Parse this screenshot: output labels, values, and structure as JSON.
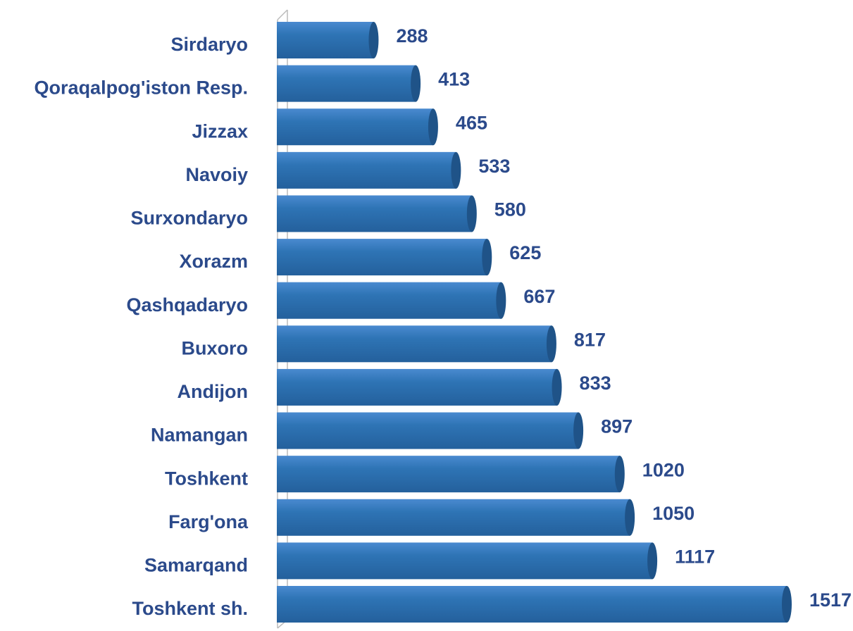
{
  "chart_data": {
    "type": "bar",
    "orientation": "horizontal",
    "categories": [
      "Sirdaryo",
      "Qoraqalpog'iston Resp.",
      "Jizzax",
      "Navoiy",
      "Surxondaryo",
      "Xorazm",
      "Qashqadaryo",
      "Buxoro",
      "Andijon",
      "Namangan",
      "Toshkent",
      "Farg'ona",
      "Samarqand",
      "Toshkent sh."
    ],
    "values": [
      288,
      413,
      465,
      533,
      580,
      625,
      667,
      817,
      833,
      897,
      1020,
      1050,
      1117,
      1517
    ],
    "color": "#2e74b5"
  }
}
